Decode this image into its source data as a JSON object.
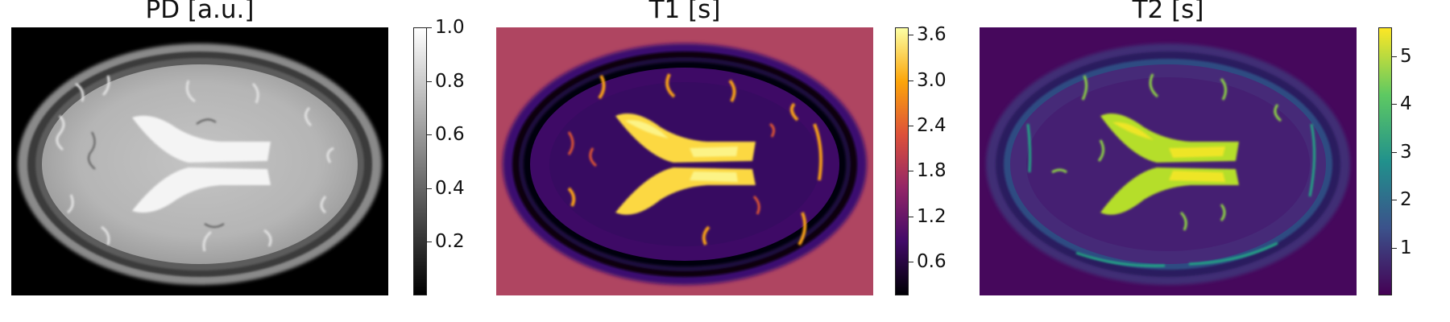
{
  "figure": {
    "panels": [
      {
        "title": "PD [a.u.]",
        "colormap": "gray",
        "colorbar": {
          "colors": [
            "#000000",
            "#ffffff"
          ],
          "range": [
            0.0,
            1.0
          ],
          "ticks": [
            {
              "value": 0.2,
              "label": "0.2"
            },
            {
              "value": 0.4,
              "label": "0.4"
            },
            {
              "value": 0.6,
              "label": "0.6"
            },
            {
              "value": 0.8,
              "label": "0.8"
            },
            {
              "value": 1.0,
              "label": "1.0"
            }
          ]
        }
      },
      {
        "title": "T1 [s]",
        "colormap": "inferno",
        "colorbar": {
          "colors": [
            "#000004",
            "#420a68",
            "#932667",
            "#dd513a",
            "#fca50a",
            "#fcffa4"
          ],
          "range": [
            0.15,
            3.7
          ],
          "ticks": [
            {
              "value": 0.6,
              "label": "0.6"
            },
            {
              "value": 1.2,
              "label": "1.2"
            },
            {
              "value": 1.8,
              "label": "1.8"
            },
            {
              "value": 2.4,
              "label": "2.4"
            },
            {
              "value": 3.0,
              "label": "3.0"
            },
            {
              "value": 3.6,
              "label": "3.6"
            }
          ]
        }
      },
      {
        "title": "T2 [s]",
        "colormap": "viridis",
        "colorbar": {
          "colors": [
            "#440154",
            "#3b528b",
            "#21918c",
            "#5ec962",
            "#fde725"
          ],
          "range": [
            0.0,
            5.6
          ],
          "ticks": [
            {
              "value": 1,
              "label": "1"
            },
            {
              "value": 2,
              "label": "2"
            },
            {
              "value": 3,
              "label": "3"
            },
            {
              "value": 4,
              "label": "4"
            },
            {
              "value": 5,
              "label": "5"
            }
          ]
        }
      }
    ]
  }
}
